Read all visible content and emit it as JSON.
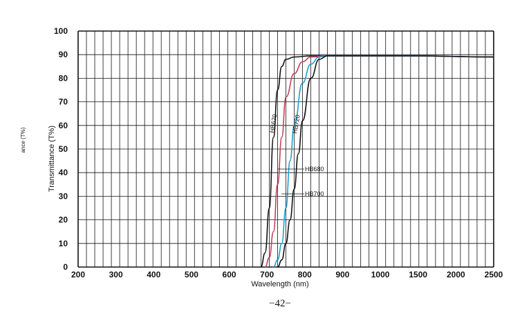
{
  "chart_data": {
    "type": "line",
    "xlabel": "Wavelength (nm)",
    "ylabel": "Transmittance (T%)",
    "ylabel_fragment": "ance (T%)",
    "x_ticks": [
      "200",
      "300",
      "400",
      "500",
      "600",
      "700",
      "800",
      "900",
      "1000",
      "1500",
      "2000",
      "2500"
    ],
    "y_ticks": [
      "0",
      "10",
      "20",
      "30",
      "40",
      "50",
      "60",
      "70",
      "80",
      "90",
      "100"
    ],
    "ylim": [
      0,
      100
    ],
    "grid": true,
    "series": [
      {
        "name": "HB670",
        "color": "#111111",
        "x": [
          640,
          650,
          660,
          670,
          680,
          690,
          700,
          720,
          760,
          800,
          1000,
          2500
        ],
        "y": [
          0,
          6,
          25,
          55,
          75,
          85,
          88,
          89,
          89.5,
          89.5,
          89.5,
          89
        ]
      },
      {
        "name": "HB680",
        "color": "#c0405a",
        "x": [
          650,
          660,
          670,
          680,
          690,
          700,
          720,
          740,
          760,
          800,
          1000,
          2500
        ],
        "y": [
          0,
          4,
          15,
          35,
          55,
          72,
          82,
          87,
          89,
          89.5,
          89.5,
          89
        ]
      },
      {
        "name": "HB700",
        "color": "#1a9fd0",
        "x": [
          670,
          680,
          690,
          700,
          710,
          720,
          740,
          760,
          780,
          800,
          1000,
          2500
        ],
        "y": [
          0,
          3,
          10,
          25,
          45,
          60,
          78,
          86,
          89,
          89.5,
          89.5,
          89
        ]
      },
      {
        "name": "HB720",
        "color": "#111111",
        "x": [
          680,
          690,
          700,
          710,
          720,
          730,
          740,
          760,
          780,
          800,
          1000,
          2500
        ],
        "y": [
          0,
          3,
          10,
          20,
          33,
          48,
          62,
          80,
          88,
          89.5,
          89.5,
          89
        ]
      }
    ],
    "annotations": [
      "HB670",
      "HB720",
      "HB680",
      "HB700"
    ]
  },
  "page_number": "−42−"
}
